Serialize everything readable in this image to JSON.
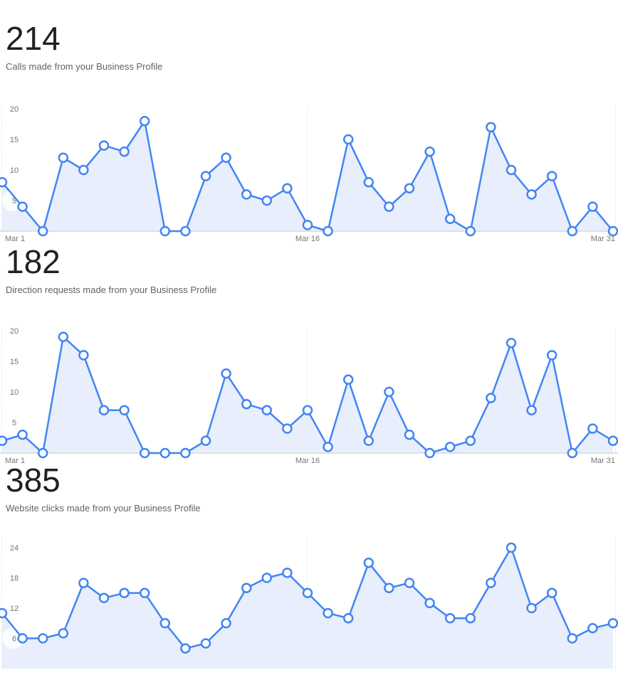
{
  "colors": {
    "line": "#4285f4",
    "area": "#e8eefb",
    "baseline": "#dcdfe5",
    "gridline": "#c6c9ce",
    "axis_label": "#757575",
    "marker_fill": "#ffffff",
    "metric_number": "#202124",
    "metric_subtitle": "#5f6368"
  },
  "chart_data": [
    {
      "type": "area",
      "title": "214",
      "subtitle": "Calls made from your Business Profile",
      "x_tick_labels": [
        "Mar 1",
        "Mar 16",
        "Mar 31"
      ],
      "x_tick_day_indices": [
        0,
        15,
        30
      ],
      "y_ticks": [
        5,
        10,
        15,
        20
      ],
      "ylim": [
        0,
        21
      ],
      "num_points": 31,
      "values": [
        8,
        4,
        0,
        12,
        10,
        14,
        13,
        18,
        0,
        0,
        9,
        12,
        6,
        5,
        7,
        1,
        0,
        15,
        8,
        4,
        7,
        13,
        2,
        0,
        17,
        10,
        6,
        9,
        0,
        4,
        0
      ],
      "total": 214,
      "legend": "none",
      "grid": "dotted-vertical-at-x-ticks"
    },
    {
      "type": "area",
      "title": "182",
      "subtitle": "Direction requests made from your Business Profile",
      "x_tick_labels": [
        "Mar 1",
        "Mar 16",
        "Mar 31"
      ],
      "x_tick_day_indices": [
        0,
        15,
        30
      ],
      "y_ticks": [
        5,
        10,
        15,
        20
      ],
      "ylim": [
        0,
        21
      ],
      "num_points": 31,
      "values": [
        2,
        3,
        0,
        19,
        16,
        7,
        7,
        0,
        0,
        0,
        2,
        13,
        8,
        7,
        4,
        7,
        1,
        12,
        2,
        10,
        3,
        0,
        1,
        2,
        9,
        18,
        7,
        16,
        0,
        4,
        2
      ],
      "total": 182,
      "legend": "none",
      "grid": "dotted-vertical-at-x-ticks"
    },
    {
      "type": "area",
      "title": "385",
      "subtitle": "Website clicks made from your Business Profile",
      "x_tick_labels": [],
      "x_tick_day_indices": [
        0,
        15,
        30
      ],
      "y_ticks": [
        6,
        12,
        18,
        24
      ],
      "ylim": [
        0,
        27
      ],
      "num_points": 31,
      "values": [
        11,
        6,
        6,
        7,
        17,
        14,
        15,
        15,
        9,
        4,
        5,
        9,
        16,
        18,
        19,
        15,
        11,
        10,
        21,
        16,
        17,
        13,
        10,
        10,
        17,
        24,
        12,
        15,
        6,
        8,
        9
      ],
      "total": 385,
      "legend": "none",
      "grid": "dotted-vertical-at-x-ticks"
    }
  ]
}
